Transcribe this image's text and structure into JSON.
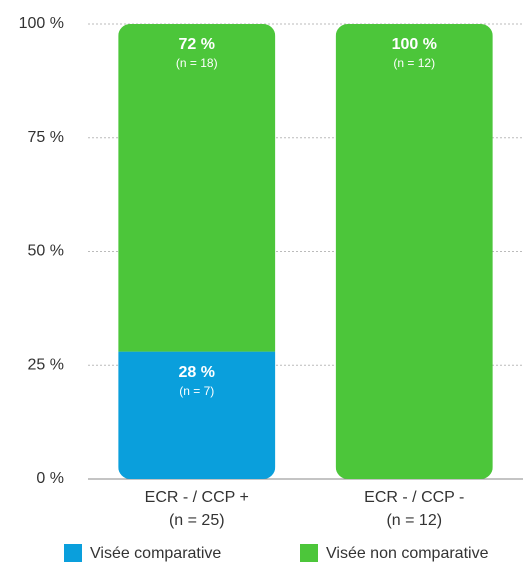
{
  "chart_data": {
    "type": "stacked_bar",
    "categories": [
      "ECR - / CCP +",
      "ECR - / CCP -"
    ],
    "category_notes": [
      "(n = 25)",
      "(n = 12)"
    ],
    "series": [
      {
        "name": "Visée comparative",
        "color": "#0a9fdc",
        "values": [
          28,
          0
        ],
        "value_labels": [
          "28 %",
          null
        ],
        "count_labels": [
          "(n = 7)",
          null
        ]
      },
      {
        "name": "Visée non comparative",
        "color": "#4cc63a",
        "values": [
          72,
          100
        ],
        "value_labels": [
          "72 %",
          "100 %"
        ],
        "count_labels": [
          "(n = 18)",
          "(n = 12)"
        ]
      }
    ],
    "ylim": [
      0,
      100
    ],
    "yticks": [
      {
        "value": 0,
        "label": "0 %"
      },
      {
        "value": 25,
        "label": "25 %"
      },
      {
        "value": 50,
        "label": "50 %"
      },
      {
        "value": 75,
        "label": "75 %"
      },
      {
        "value": 100,
        "label": "100 %"
      }
    ],
    "grid": true
  }
}
